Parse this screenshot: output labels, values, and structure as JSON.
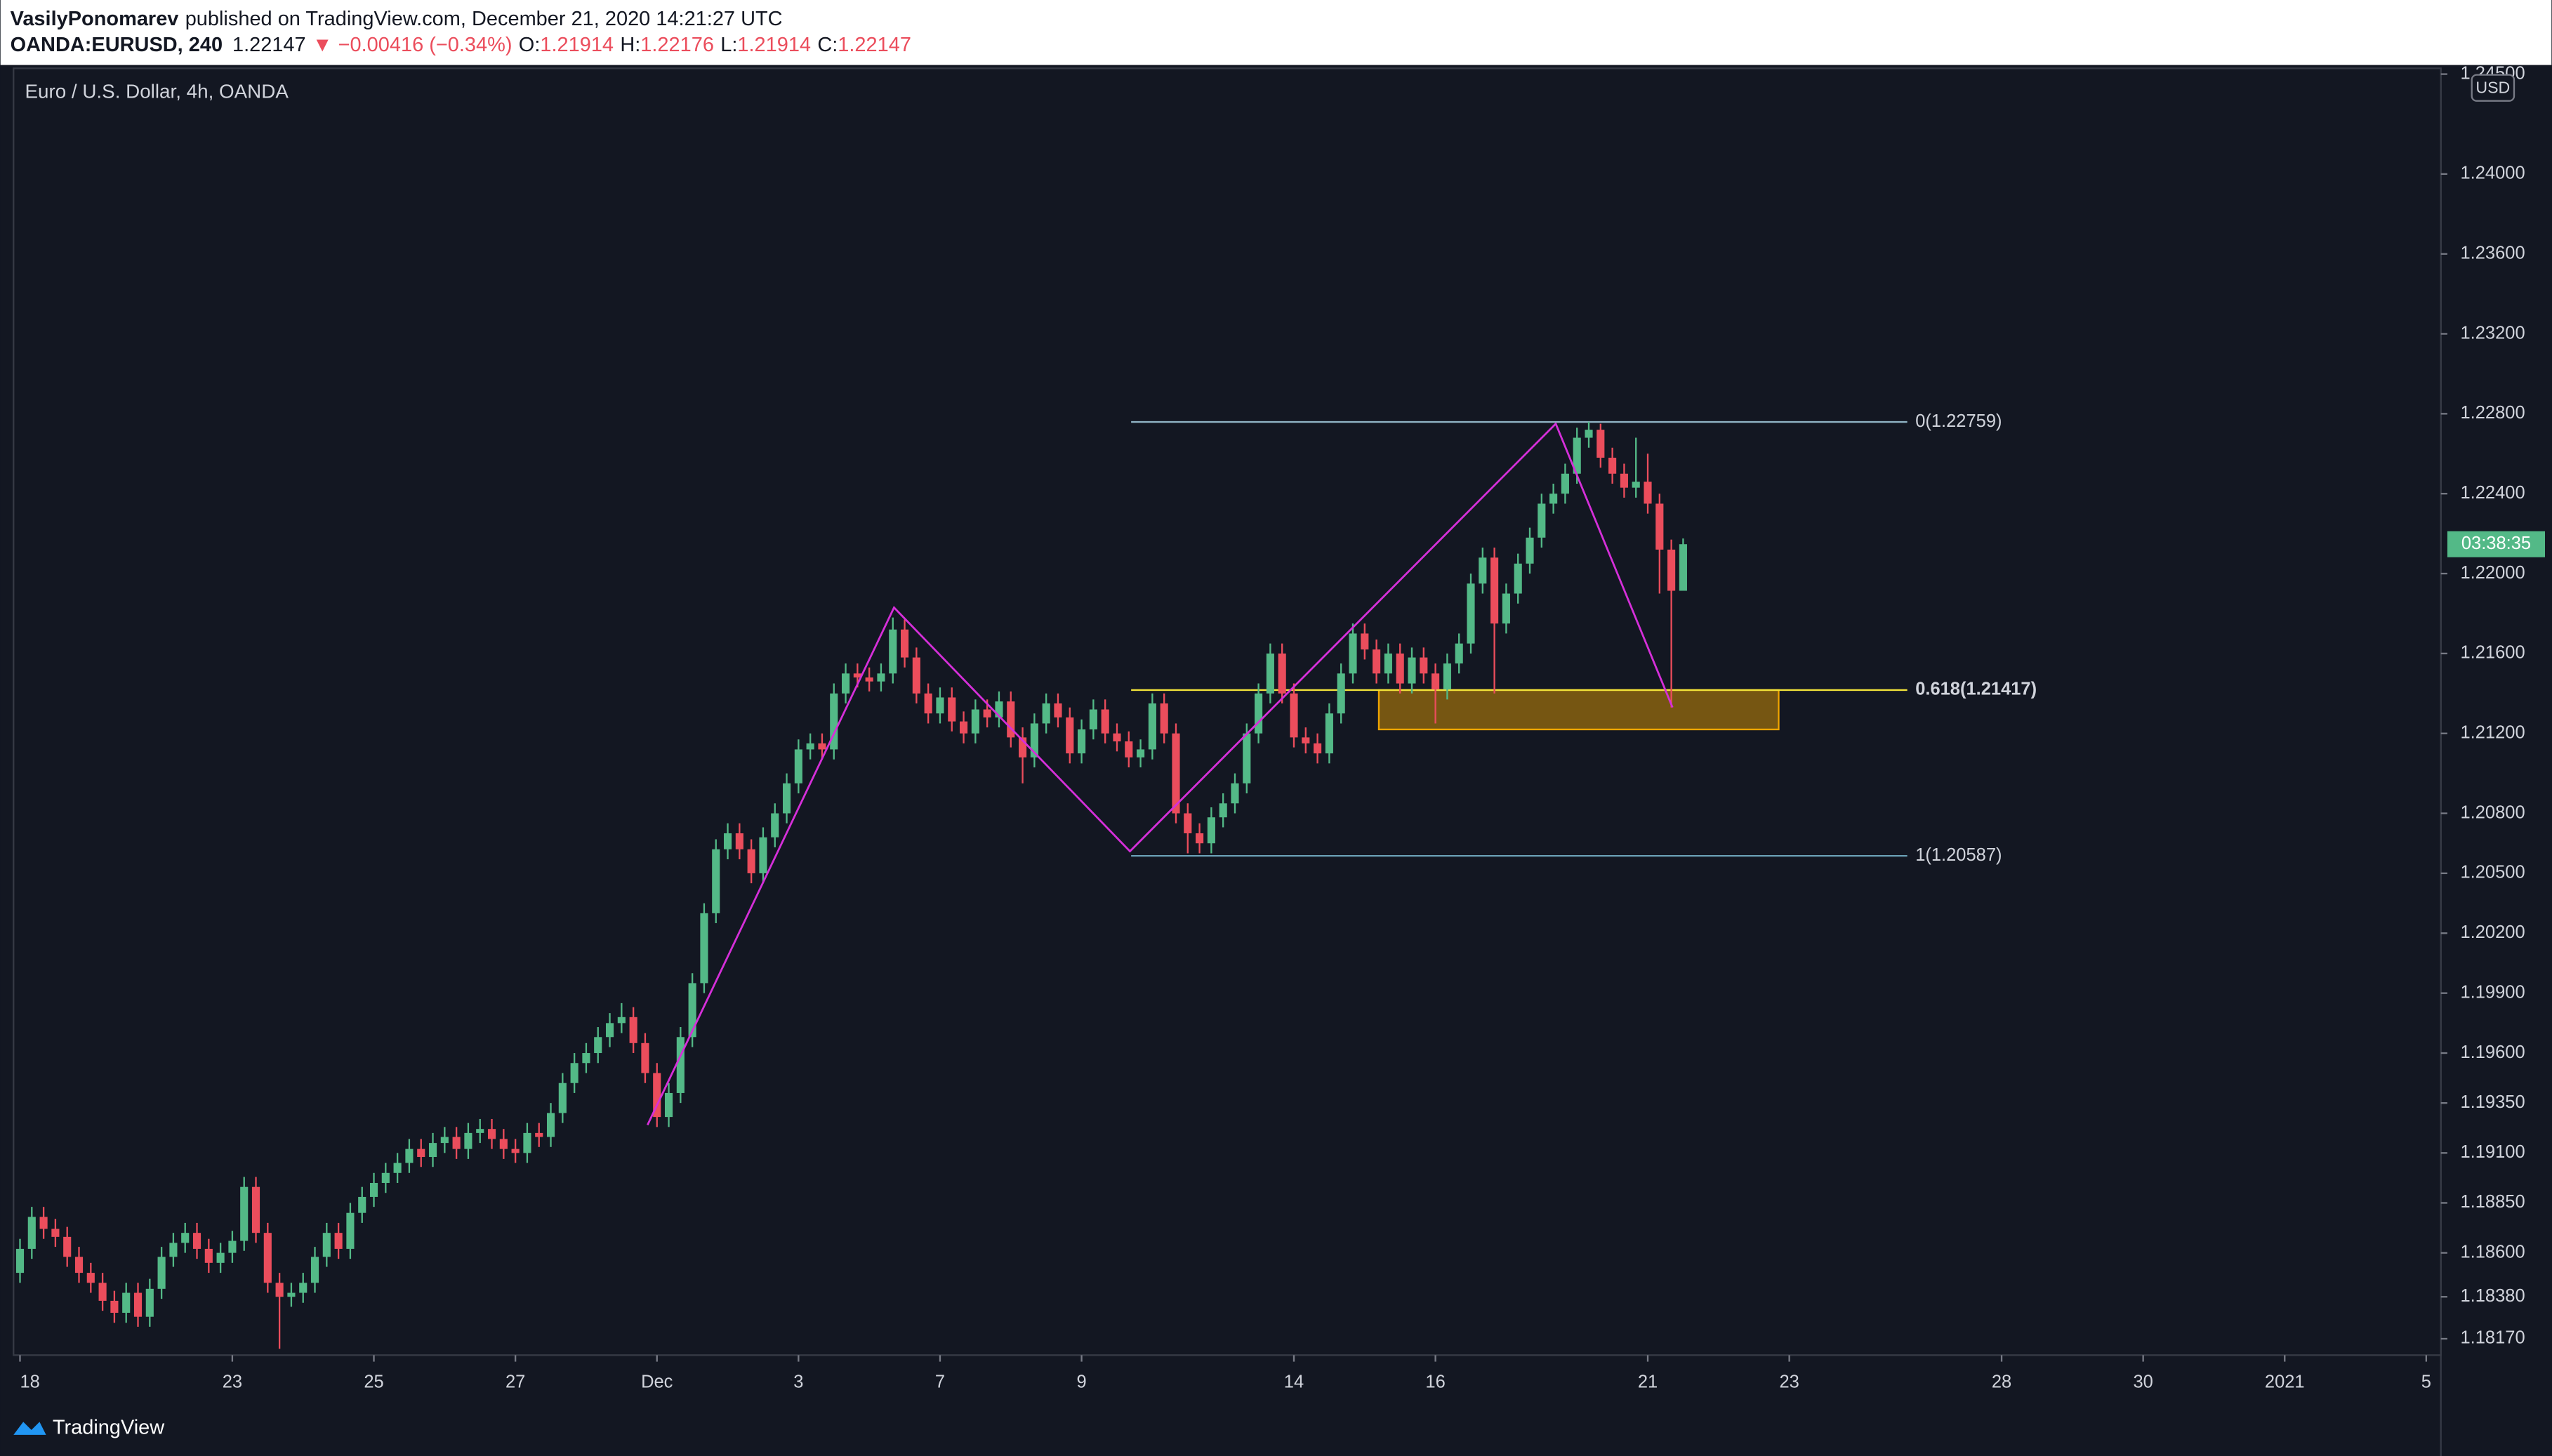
{
  "header": {
    "author": "VasilyPonomarev",
    "published": "published on TradingView.com, December 21, 2020 14:21:27 UTC",
    "symbol": "OANDA:EURUSD, 240",
    "change": "▼ −0.00416 (−0.34%)",
    "o": "O:",
    "h": "H:",
    "l": "L:",
    "c": "C:"
  },
  "footer": {
    "brand": "TradingView"
  },
  "chart_data": {
    "type": "candlestick",
    "title": "Euro / U.S. Dollar, 4h, OANDA",
    "currency": "USD",
    "countdown": "03:38:35",
    "colors": {
      "up": "#53b987",
      "down": "#eb4d5c"
    },
    "grid": false,
    "x": [
      0,
      1,
      2,
      3,
      4,
      5,
      6,
      7,
      8,
      9,
      10,
      11,
      12,
      13,
      14,
      15,
      16,
      17,
      18,
      19,
      20,
      21,
      22,
      23,
      24,
      25,
      26,
      27,
      28,
      29,
      30,
      31,
      32,
      33,
      34,
      35,
      36,
      37,
      38,
      39,
      40,
      41,
      42,
      43,
      44,
      45,
      46,
      47,
      48,
      49,
      50,
      51,
      52,
      53,
      54,
      55,
      56,
      57,
      58,
      59,
      60,
      61,
      62,
      63,
      64,
      65,
      66,
      67,
      68,
      69,
      70,
      71,
      72,
      73,
      74,
      75,
      76,
      77,
      78,
      79,
      80,
      81,
      82,
      83,
      84,
      85,
      86,
      87,
      88,
      89,
      90,
      91,
      92,
      93,
      94,
      95,
      96,
      97,
      98,
      99,
      100,
      101,
      102,
      103,
      104,
      105,
      106,
      107,
      108,
      109,
      110,
      111,
      112,
      113,
      114,
      115,
      116,
      117,
      118,
      119,
      120,
      121,
      122,
      123,
      124,
      125,
      126,
      127,
      128,
      129,
      130,
      131,
      132,
      133,
      134,
      135,
      136,
      137,
      138,
      139,
      140,
      141
    ],
    "open": [
      1.185,
      1.1862,
      1.1878,
      1.1872,
      1.1868,
      1.1858,
      1.185,
      1.1845,
      1.1836,
      1.183,
      1.184,
      1.1828,
      1.1842,
      1.1858,
      1.1865,
      1.187,
      1.1862,
      1.1855,
      1.186,
      1.1866,
      1.1893,
      1.187,
      1.1845,
      1.1838,
      1.184,
      1.1845,
      1.1858,
      1.187,
      1.1862,
      1.188,
      1.1888,
      1.1895,
      1.19,
      1.1905,
      1.1912,
      1.1908,
      1.1915,
      1.1918,
      1.1912,
      1.192,
      1.1922,
      1.1917,
      1.1912,
      1.191,
      1.192,
      1.1918,
      1.193,
      1.1945,
      1.1955,
      1.196,
      1.1968,
      1.1975,
      1.1978,
      1.1965,
      1.195,
      1.1928,
      1.194,
      1.1968,
      1.1995,
      1.203,
      1.2062,
      1.207,
      1.2062,
      1.205,
      1.2068,
      1.208,
      1.2095,
      1.2112,
      1.2115,
      1.2112,
      1.214,
      1.215,
      1.2148,
      1.2146,
      1.215,
      1.2172,
      1.2158,
      1.214,
      1.213,
      1.2138,
      1.2126,
      1.212,
      1.2132,
      1.2128,
      1.2136,
      1.2118,
      1.2108,
      1.2125,
      1.2135,
      1.2128,
      1.211,
      1.2122,
      1.2132,
      1.212,
      1.2116,
      1.2108,
      1.2112,
      1.2135,
      1.212,
      1.208,
      1.207,
      1.2065,
      1.2078,
      1.2085,
      1.2095,
      1.212,
      1.214,
      1.216,
      1.214,
      1.2118,
      1.2115,
      1.211,
      1.213,
      1.215,
      1.217,
      1.2162,
      1.215,
      1.216,
      1.2145,
      1.2158,
      1.215,
      1.2142,
      1.2155,
      1.2165,
      1.2195,
      1.2208,
      1.2175,
      1.219,
      1.2205,
      1.2218,
      1.2235,
      1.224,
      1.225,
      1.2268,
      1.2272,
      1.2258,
      1.225,
      1.2243,
      1.2246,
      1.2235,
      1.2212,
      1.21914
    ],
    "high": [
      1.1867,
      1.1883,
      1.1883,
      1.1877,
      1.1873,
      1.1863,
      1.1855,
      1.185,
      1.1841,
      1.1845,
      1.1845,
      1.1847,
      1.1863,
      1.187,
      1.1875,
      1.1875,
      1.1867,
      1.1865,
      1.1871,
      1.1898,
      1.1898,
      1.1875,
      1.185,
      1.1845,
      1.185,
      1.1863,
      1.1875,
      1.1875,
      1.1885,
      1.1893,
      1.19,
      1.1905,
      1.191,
      1.1917,
      1.1917,
      1.192,
      1.1923,
      1.1923,
      1.1925,
      1.1927,
      1.1927,
      1.1922,
      1.1917,
      1.1925,
      1.1925,
      1.1935,
      1.195,
      1.196,
      1.1965,
      1.1973,
      1.198,
      1.1985,
      1.1983,
      1.197,
      1.1955,
      1.1945,
      1.1973,
      1.2,
      1.2035,
      1.2067,
      1.2075,
      1.2075,
      1.2067,
      1.2073,
      1.2085,
      1.21,
      1.2117,
      1.212,
      1.212,
      1.2145,
      1.2155,
      1.2155,
      1.2153,
      1.2155,
      1.2178,
      1.2177,
      1.2163,
      1.2145,
      1.2143,
      1.2143,
      1.2131,
      1.2137,
      1.2137,
      1.2141,
      1.2141,
      1.2123,
      1.213,
      1.214,
      1.214,
      1.2133,
      1.2127,
      1.2137,
      1.2137,
      1.2125,
      1.2121,
      1.2117,
      1.214,
      1.214,
      1.2125,
      1.2085,
      1.2075,
      1.2083,
      1.209,
      1.21,
      1.2125,
      1.2145,
      1.2165,
      1.2165,
      1.2145,
      1.2123,
      1.212,
      1.2135,
      1.2155,
      1.2175,
      1.2175,
      1.2167,
      1.2165,
      1.2165,
      1.2163,
      1.2163,
      1.2155,
      1.216,
      1.217,
      1.22,
      1.2213,
      1.2213,
      1.2195,
      1.221,
      1.2223,
      1.224,
      1.2245,
      1.2255,
      1.2273,
      1.2276,
      1.2275,
      1.2263,
      1.2255,
      1.2268,
      1.226,
      1.224,
      1.2217,
      1.22176
    ],
    "low": [
      1.1845,
      1.1857,
      1.1867,
      1.1863,
      1.1853,
      1.1845,
      1.184,
      1.1831,
      1.1825,
      1.1825,
      1.1823,
      1.1823,
      1.1837,
      1.1853,
      1.186,
      1.1857,
      1.185,
      1.185,
      1.1855,
      1.1861,
      1.1865,
      1.184,
      1.1812,
      1.1833,
      1.1835,
      1.184,
      1.1853,
      1.1857,
      1.1857,
      1.1875,
      1.1883,
      1.189,
      1.1895,
      1.19,
      1.1903,
      1.1903,
      1.191,
      1.1907,
      1.1907,
      1.1915,
      1.1912,
      1.1907,
      1.1905,
      1.1905,
      1.1913,
      1.1913,
      1.1925,
      1.194,
      1.195,
      1.1955,
      1.1963,
      1.197,
      1.196,
      1.1945,
      1.1923,
      1.1923,
      1.1935,
      1.1963,
      1.199,
      1.2025,
      1.2057,
      1.2057,
      1.2045,
      1.2045,
      1.2063,
      1.2075,
      1.209,
      1.2107,
      1.2107,
      1.2107,
      1.2135,
      1.2143,
      1.2141,
      1.2141,
      1.2145,
      1.2153,
      1.2135,
      1.2125,
      1.2125,
      1.2121,
      1.2115,
      1.2115,
      1.2123,
      1.2123,
      1.2113,
      1.2095,
      1.2103,
      1.212,
      1.2123,
      1.2105,
      1.2105,
      1.2117,
      1.2115,
      1.2111,
      1.2103,
      1.2103,
      1.2107,
      1.2115,
      1.2075,
      1.206,
      1.206,
      1.206,
      1.2073,
      1.208,
      1.209,
      1.2115,
      1.2135,
      1.2135,
      1.2113,
      1.211,
      1.2105,
      1.2105,
      1.2125,
      1.2145,
      1.2157,
      1.2145,
      1.2145,
      1.214,
      1.214,
      1.2145,
      1.2125,
      1.2137,
      1.215,
      1.216,
      1.219,
      1.214,
      1.217,
      1.2185,
      1.22,
      1.2213,
      1.223,
      1.2235,
      1.2245,
      1.2263,
      1.2253,
      1.2245,
      1.2238,
      1.2238,
      1.223,
      1.219,
      1.2133,
      1.21914
    ],
    "close": [
      1.1862,
      1.1878,
      1.1872,
      1.1868,
      1.1858,
      1.185,
      1.1845,
      1.1836,
      1.183,
      1.184,
      1.1828,
      1.1842,
      1.1858,
      1.1865,
      1.187,
      1.1862,
      1.1855,
      1.186,
      1.1866,
      1.1893,
      1.187,
      1.1845,
      1.1838,
      1.184,
      1.1845,
      1.1858,
      1.187,
      1.1862,
      1.188,
      1.1888,
      1.1895,
      1.19,
      1.1905,
      1.1912,
      1.1908,
      1.1915,
      1.1918,
      1.1912,
      1.192,
      1.1922,
      1.1917,
      1.1912,
      1.191,
      1.192,
      1.1918,
      1.193,
      1.1945,
      1.1955,
      1.196,
      1.1968,
      1.1975,
      1.1978,
      1.1965,
      1.195,
      1.1928,
      1.194,
      1.1968,
      1.1995,
      1.203,
      1.2062,
      1.207,
      1.2062,
      1.205,
      1.2068,
      1.208,
      1.2095,
      1.2112,
      1.2115,
      1.2112,
      1.214,
      1.215,
      1.2148,
      1.2146,
      1.215,
      1.2172,
      1.2158,
      1.214,
      1.213,
      1.2138,
      1.2126,
      1.212,
      1.2132,
      1.2128,
      1.2136,
      1.2118,
      1.2108,
      1.2125,
      1.2135,
      1.2128,
      1.211,
      1.2122,
      1.2132,
      1.212,
      1.2116,
      1.2108,
      1.2112,
      1.2135,
      1.212,
      1.208,
      1.207,
      1.2065,
      1.2078,
      1.2085,
      1.2095,
      1.212,
      1.214,
      1.216,
      1.214,
      1.2118,
      1.2115,
      1.211,
      1.213,
      1.215,
      1.217,
      1.2162,
      1.215,
      1.216,
      1.2145,
      1.2158,
      1.215,
      1.2142,
      1.2155,
      1.2165,
      1.2195,
      1.2208,
      1.2175,
      1.219,
      1.2205,
      1.2218,
      1.2235,
      1.224,
      1.225,
      1.2268,
      1.2272,
      1.2258,
      1.225,
      1.2243,
      1.2246,
      1.2235,
      1.2212,
      1.21914,
      1.22147
    ],
    "xlim": [
      -0.55,
      205.24
    ],
    "xticks": [
      {
        "value": 0,
        "label": "18"
      },
      {
        "value": 18,
        "label": "23"
      },
      {
        "value": 30,
        "label": "25"
      },
      {
        "value": 42,
        "label": "27"
      },
      {
        "value": 54,
        "label": "Dec"
      },
      {
        "value": 66,
        "label": "3"
      },
      {
        "value": 78,
        "label": "7"
      },
      {
        "value": 90,
        "label": "9"
      },
      {
        "value": 108,
        "label": "14"
      },
      {
        "value": 120,
        "label": "16"
      },
      {
        "value": 138,
        "label": "21"
      },
      {
        "value": 150,
        "label": "23"
      },
      {
        "value": 168,
        "label": "28"
      },
      {
        "value": 180,
        "label": "30"
      },
      {
        "value": 192,
        "label": "2021"
      },
      {
        "value": 204,
        "label": "5"
      }
    ],
    "ylim": [
      1.18088,
      1.24529
    ],
    "yticks": [
      {
        "value": 1.245,
        "label": "1.24500"
      },
      {
        "value": 1.24,
        "label": "1.24000"
      },
      {
        "value": 1.236,
        "label": "1.23600"
      },
      {
        "value": 1.232,
        "label": "1.23200"
      },
      {
        "value": 1.228,
        "label": "1.22800"
      },
      {
        "value": 1.224,
        "label": "1.22400"
      },
      {
        "value": 1.22,
        "label": "1.22000"
      },
      {
        "value": 1.216,
        "label": "1.21600"
      },
      {
        "value": 1.212,
        "label": "1.21200"
      },
      {
        "value": 1.208,
        "label": "1.20800"
      },
      {
        "value": 1.205,
        "label": "1.20500"
      },
      {
        "value": 1.202,
        "label": "1.20200"
      },
      {
        "value": 1.199,
        "label": "1.19900"
      },
      {
        "value": 1.196,
        "label": "1.19600"
      },
      {
        "value": 1.1935,
        "label": "1.19350"
      },
      {
        "value": 1.191,
        "label": "1.19100"
      },
      {
        "value": 1.1885,
        "label": "1.18850"
      },
      {
        "value": 1.186,
        "label": "1.18600"
      },
      {
        "value": 1.1838,
        "label": "1.18380"
      },
      {
        "value": 1.1817,
        "label": "1.18170"
      }
    ],
    "fib": {
      "xlim": [
        94.2,
        160
      ],
      "levels": [
        {
          "value": 1.22759,
          "label": "0(1.22759)",
          "color": "#8fb3c4"
        },
        {
          "value": 1.21417,
          "label": "0.618(1.21417)",
          "color": "#f2e33a"
        },
        {
          "value": 1.20587,
          "label": "1(1.20587)",
          "color": "#6a9fb5"
        }
      ]
    },
    "zone": {
      "xlim": [
        115.2,
        149.1
      ],
      "ylim": [
        1.2122,
        1.21417
      ],
      "color": "#f0a500"
    },
    "pattern": {
      "color": "#d52fd9",
      "x": [
        53.2,
        74.1,
        94.1,
        130.2,
        140.1
      ],
      "y": [
        1.1924,
        1.2183,
        1.2061,
        1.2275,
        1.2133
      ]
    }
  }
}
